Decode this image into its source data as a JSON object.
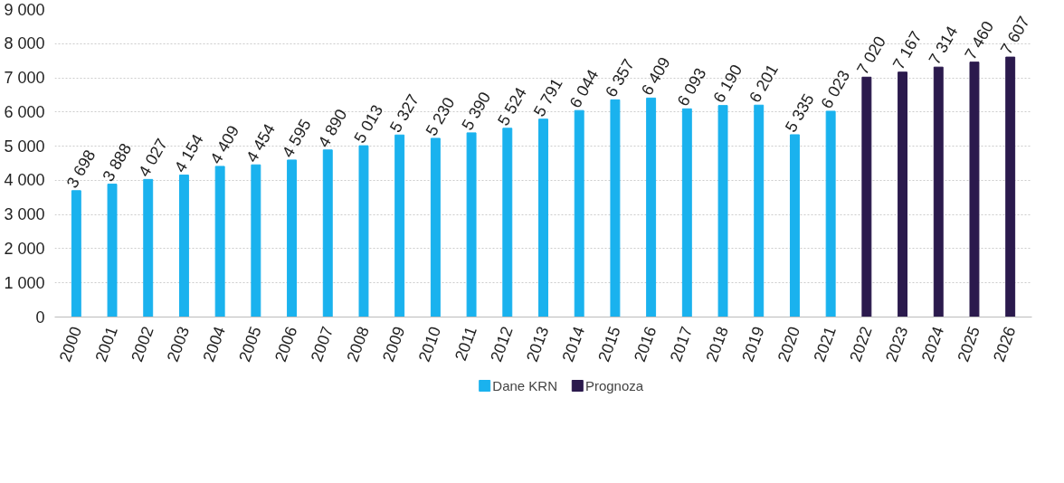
{
  "chart_data": {
    "type": "bar",
    "categories": [
      "2000",
      "2001",
      "2002",
      "2003",
      "2004",
      "2005",
      "2006",
      "2007",
      "2008",
      "2009",
      "2010",
      "2011",
      "2012",
      "2013",
      "2014",
      "2015",
      "2016",
      "2017",
      "2018",
      "2019",
      "2020",
      "2021",
      "2022",
      "2023",
      "2024",
      "2025",
      "2026"
    ],
    "series": [
      {
        "name": "Dane KRN",
        "color": "#1ab2ee",
        "values": [
          3698,
          3888,
          4027,
          4154,
          4409,
          4454,
          4595,
          4890,
          5013,
          5327,
          5230,
          5390,
          5524,
          5791,
          6044,
          6357,
          6409,
          6093,
          6190,
          6201,
          5335,
          6023,
          null,
          null,
          null,
          null,
          null
        ],
        "value_labels": [
          "3 698",
          "3 888",
          "4 027",
          "4 154",
          "4 409",
          "4 454",
          "4 595",
          "4 890",
          "5 013",
          "5 327",
          "5 230",
          "5 390",
          "5 524",
          "5 791",
          "6 044",
          "6 357",
          "6 409",
          "6 093",
          "6 190",
          "6 201",
          "5 335",
          "6 023",
          null,
          null,
          null,
          null,
          null
        ]
      },
      {
        "name": "Prognoza",
        "color": "#2b1a4d",
        "values": [
          null,
          null,
          null,
          null,
          null,
          null,
          null,
          null,
          null,
          null,
          null,
          null,
          null,
          null,
          null,
          null,
          null,
          null,
          null,
          null,
          null,
          null,
          7020,
          7167,
          7314,
          7460,
          7607
        ],
        "value_labels": [
          null,
          null,
          null,
          null,
          null,
          null,
          null,
          null,
          null,
          null,
          null,
          null,
          null,
          null,
          null,
          null,
          null,
          null,
          null,
          null,
          null,
          null,
          "7 020",
          "7 167",
          "7 314",
          "7 460",
          "7 607"
        ]
      }
    ],
    "ylim": [
      0,
      9000
    ],
    "yticks": [
      0,
      {
        "value": 1000,
        "label": "1 000"
      },
      {
        "value": 2000,
        "label": "2 000"
      },
      {
        "value": 3000,
        "label": "3 000"
      },
      {
        "value": 4000,
        "label": "4 000"
      },
      {
        "value": 5000,
        "label": "5 000"
      },
      {
        "value": 6000,
        "label": "6 000"
      },
      {
        "value": 7000,
        "label": "7 000"
      },
      {
        "value": 8000,
        "label": "8 000"
      },
      {
        "value": 9000,
        "label": "9 000"
      }
    ],
    "grid": "y",
    "legend": "bottom"
  }
}
